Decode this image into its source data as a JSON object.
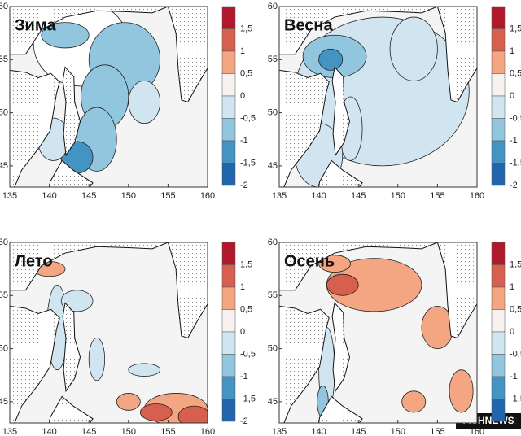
{
  "panels": [
    {
      "title": "Зима"
    },
    {
      "title": "Весна"
    },
    {
      "title": "Лето"
    },
    {
      "title": "Осень"
    }
  ],
  "x_axis": {
    "ticks": [
      135,
      140,
      145,
      150,
      155,
      160
    ]
  },
  "y_axis": {
    "ticks": [
      45,
      50,
      55,
      60
    ]
  },
  "colorbar": {
    "labels": [
      "1,5",
      "1",
      "0,5",
      "0",
      "-0,5",
      "-1",
      "-1,5",
      "-2"
    ],
    "colors": [
      "#b2182b",
      "#d6604d",
      "#f4a582",
      "#f7f2f0",
      "#d1e5f0",
      "#92c5de",
      "#4393c3",
      "#2166ac"
    ]
  },
  "watermark": "FISHNEWS"
}
